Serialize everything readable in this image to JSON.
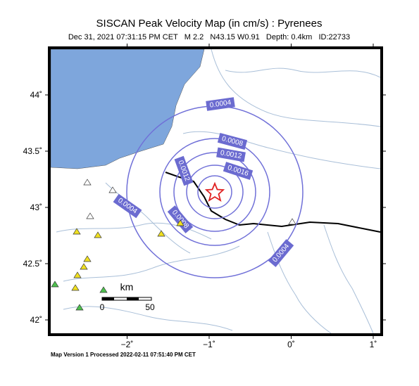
{
  "header": {
    "title": "SISCAN Peak Velocity Map (in cm/s) : Pyrenees",
    "subtitle": "Dec 31, 2021 07:31:15 PM CET   M 2.2   N43.15 W0.91   Depth: 0.4km   ID:22733"
  },
  "map": {
    "lat_ticks": [
      {
        "value": 44,
        "label": "44˚"
      },
      {
        "value": 43.5,
        "label": "43.5˚"
      },
      {
        "value": 43,
        "label": "43˚"
      },
      {
        "value": 42.5,
        "label": "42.5˚"
      },
      {
        "value": 42,
        "label": "42˚"
      }
    ],
    "lon_ticks": [
      {
        "value": -2,
        "label": "−2˚"
      },
      {
        "value": -1,
        "label": "−1˚"
      },
      {
        "value": 0,
        "label": "0˚"
      },
      {
        "value": 1,
        "label": "1˚"
      }
    ],
    "contour_labels": [
      "0.0004",
      "0.0008",
      "0.0012",
      "0.0016",
      "0.0004",
      "0.0012",
      "0.0008",
      "0.0004"
    ],
    "scale": {
      "unit": "km",
      "start": "0",
      "end": "50"
    }
  },
  "footer": "Map Version 1 Processed 2022-02-11 07:51:40 PM CET"
}
